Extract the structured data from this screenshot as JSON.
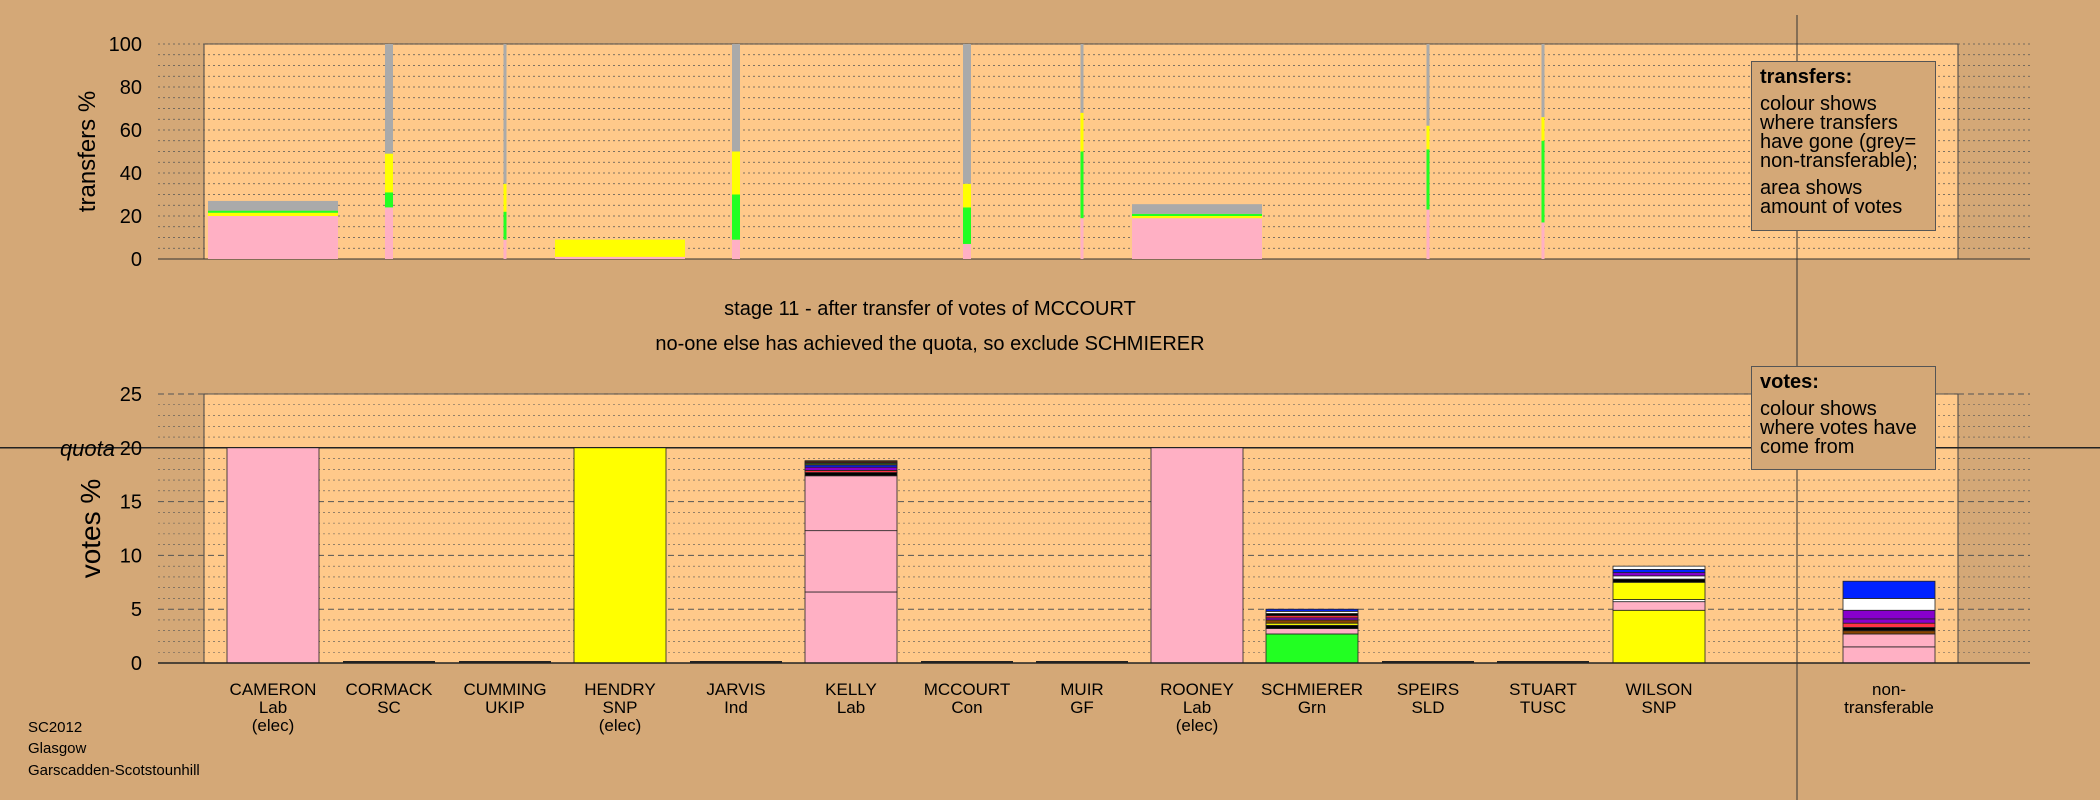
{
  "stage_caption": "stage 11 - after transfer of votes of MCCOURT",
  "status_caption": "no-one else has achieved the quota, so exclude SCHMIERER",
  "transfers_legend": {
    "title": "transfers:",
    "line1": "colour shows where transfers have gone (grey= non-transferable);",
    "line2": "area shows amount of votes"
  },
  "votes_legend": {
    "title": "votes:",
    "line1": "colour shows where votes have come from"
  },
  "footer": {
    "line1": "SC2012",
    "line2": "Glasgow",
    "line3": "Garscadden-Scotstounhill"
  },
  "candidates": [
    {
      "name": "CAMERON",
      "party": "Lab",
      "status": "(elec)"
    },
    {
      "name": "CORMACK",
      "party": "SC",
      "status": ""
    },
    {
      "name": "CUMMING",
      "party": "UKIP",
      "status": ""
    },
    {
      "name": "HENDRY",
      "party": "SNP",
      "status": "(elec)"
    },
    {
      "name": "JARVIS",
      "party": "Ind",
      "status": ""
    },
    {
      "name": "KELLY",
      "party": "Lab",
      "status": ""
    },
    {
      "name": "MCCOURT",
      "party": "Con",
      "status": ""
    },
    {
      "name": "MUIR",
      "party": "GF",
      "status": ""
    },
    {
      "name": "ROONEY",
      "party": "Lab",
      "status": "(elec)"
    },
    {
      "name": "SCHMIERER",
      "party": "Grn",
      "status": ""
    },
    {
      "name": "SPEIRS",
      "party": "SLD",
      "status": ""
    },
    {
      "name": "STUART",
      "party": "TUSC",
      "status": ""
    },
    {
      "name": "WILSON",
      "party": "SNP",
      "status": ""
    }
  ],
  "nontransferable_label": {
    "line1": "non-",
    "line2": "transferable"
  },
  "colors": {
    "background": "#d4a877",
    "plot": "#ffc98a",
    "Lab": "#ffb0c4",
    "SNP": "#ffff00",
    "Grn": "#22ff22",
    "Con": "#0022ff",
    "SLD": "#ffffff",
    "UKIP": "#8800cc",
    "Ind": "#000000",
    "SC": "#ff3344",
    "GF": "#884400",
    "TUSC": "#cc0000",
    "nontransferable": "#aaaaaa"
  },
  "chart_data": [
    {
      "type": "bar",
      "title": "",
      "ylabel": "transfers %",
      "ylim": [
        0,
        100
      ],
      "yticks": [
        0,
        20,
        40,
        60,
        80,
        100
      ],
      "bars": [
        {
          "candidate": "CAMERON",
          "width": "wide",
          "segments": [
            {
              "party": "Lab",
              "value": 20
            },
            {
              "party": "SNP",
              "value": 1.5
            },
            {
              "party": "Grn",
              "value": 1
            },
            {
              "party": "nontransferable",
              "value": 4.5
            }
          ]
        },
        {
          "candidate": "CORMACK",
          "width": "thin",
          "segments": [
            {
              "party": "Lab",
              "value": 24
            },
            {
              "party": "Grn",
              "value": 7
            },
            {
              "party": "SNP",
              "value": 18
            },
            {
              "party": "nontransferable",
              "value": 51
            }
          ]
        },
        {
          "candidate": "CUMMING",
          "width": "hair",
          "segments": [
            {
              "party": "Lab",
              "value": 9
            },
            {
              "party": "Grn",
              "value": 13
            },
            {
              "party": "SNP",
              "value": 13
            },
            {
              "party": "nontransferable",
              "value": 65
            }
          ]
        },
        {
          "candidate": "HENDRY",
          "width": "wide",
          "segments": [
            {
              "party": "Lab",
              "value": 1
            },
            {
              "party": "SNP",
              "value": 8
            }
          ]
        },
        {
          "candidate": "JARVIS",
          "width": "thin",
          "segments": [
            {
              "party": "Lab",
              "value": 9
            },
            {
              "party": "Grn",
              "value": 21
            },
            {
              "party": "SNP",
              "value": 20
            },
            {
              "party": "nontransferable",
              "value": 50
            }
          ]
        },
        {
          "candidate": "MCCOURT",
          "width": "thin",
          "segments": [
            {
              "party": "Lab",
              "value": 7
            },
            {
              "party": "Grn",
              "value": 17
            },
            {
              "party": "SNP",
              "value": 11
            },
            {
              "party": "nontransferable",
              "value": 65
            }
          ]
        },
        {
          "candidate": "MUIR",
          "width": "hair",
          "segments": [
            {
              "party": "Lab",
              "value": 19
            },
            {
              "party": "Grn",
              "value": 31
            },
            {
              "party": "SNP",
              "value": 18
            },
            {
              "party": "nontransferable",
              "value": 32
            }
          ]
        },
        {
          "candidate": "ROONEY",
          "width": "wide",
          "segments": [
            {
              "party": "Lab",
              "value": 19
            },
            {
              "party": "SNP",
              "value": 1
            },
            {
              "party": "Grn",
              "value": 1
            },
            {
              "party": "nontransferable",
              "value": 4.5
            }
          ]
        },
        {
          "candidate": "SPEIRS",
          "width": "hair",
          "segments": [
            {
              "party": "Lab",
              "value": 23
            },
            {
              "party": "Grn",
              "value": 28
            },
            {
              "party": "SNP",
              "value": 11
            },
            {
              "party": "nontransferable",
              "value": 38
            }
          ]
        },
        {
          "candidate": "STUART",
          "width": "hair",
          "segments": [
            {
              "party": "Lab",
              "value": 17
            },
            {
              "party": "Grn",
              "value": 38
            },
            {
              "party": "SNP",
              "value": 11
            },
            {
              "party": "nontransferable",
              "value": 34
            }
          ]
        }
      ]
    },
    {
      "type": "bar",
      "title": "",
      "ylabel": "votes %",
      "ylim": [
        0,
        25
      ],
      "yticks": [
        0,
        5,
        10,
        15,
        20,
        25
      ],
      "quota": {
        "label": "quota",
        "value": 20
      },
      "bars": [
        {
          "candidate": "CAMERON",
          "segments": [
            {
              "party": "Lab",
              "value": 20
            }
          ]
        },
        {
          "candidate": "CORMACK",
          "segments": []
        },
        {
          "candidate": "CUMMING",
          "segments": []
        },
        {
          "candidate": "HENDRY",
          "segments": [
            {
              "party": "SNP",
              "value": 20
            }
          ]
        },
        {
          "candidate": "JARVIS",
          "segments": []
        },
        {
          "candidate": "KELLY",
          "segments": [
            {
              "party": "Lab",
              "value": 6.6
            },
            {
              "party": "Lab",
              "value": 5.7
            },
            {
              "party": "Lab",
              "value": 5.1
            },
            {
              "party": "Ind",
              "value": 0.3
            },
            {
              "party": "SC",
              "value": 0.2
            },
            {
              "party": "UKIP",
              "value": 0.3
            },
            {
              "party": "Con",
              "value": 0.2
            },
            {
              "party": "SNP",
              "value": 0.1
            },
            {
              "party": "Grn",
              "value": 0.1
            },
            {
              "party": "TUSC",
              "value": 0.1
            },
            {
              "party": "GF",
              "value": 0.1
            }
          ]
        },
        {
          "candidate": "MCCOURT",
          "segments": []
        },
        {
          "candidate": "MUIR",
          "segments": []
        },
        {
          "candidate": "ROONEY",
          "segments": [
            {
              "party": "Lab",
              "value": 20
            }
          ]
        },
        {
          "candidate": "SCHMIERER",
          "segments": [
            {
              "party": "Grn",
              "value": 2.7
            },
            {
              "party": "Lab",
              "value": 0.5
            },
            {
              "party": "Ind",
              "value": 0.3
            },
            {
              "party": "SNP",
              "value": 0.2
            },
            {
              "party": "GF",
              "value": 0.3
            },
            {
              "party": "UKIP",
              "value": 0.2
            },
            {
              "party": "SC",
              "value": 0.2
            },
            {
              "party": "Ind",
              "value": 0.2
            },
            {
              "party": "SLD",
              "value": 0.2
            },
            {
              "party": "Con",
              "value": 0.2
            }
          ]
        },
        {
          "candidate": "SPEIRS",
          "segments": []
        },
        {
          "candidate": "STUART",
          "segments": []
        },
        {
          "candidate": "WILSON",
          "segments": [
            {
              "party": "SNP",
              "value": 4.9
            },
            {
              "party": "Lab",
              "value": 0.8
            },
            {
              "party": "SLD",
              "value": 0.2
            },
            {
              "party": "SNP",
              "value": 1.6
            },
            {
              "party": "Ind",
              "value": 0.3
            },
            {
              "party": "SLD",
              "value": 0.3
            },
            {
              "party": "UKIP",
              "value": 0.3
            },
            {
              "party": "Con",
              "value": 0.3
            },
            {
              "party": "SLD",
              "value": 0.3
            }
          ]
        },
        {
          "candidate": "non-transferable",
          "segments": [
            {
              "party": "Lab",
              "value": 1.5
            },
            {
              "party": "Lab",
              "value": 1.2
            },
            {
              "party": "GF",
              "value": 0.3
            },
            {
              "party": "Ind",
              "value": 0.3
            },
            {
              "party": "SC",
              "value": 0.4
            },
            {
              "party": "UKIP",
              "value": 0.4
            },
            {
              "party": "UKIP",
              "value": 0.8
            },
            {
              "party": "SLD",
              "value": 1.1
            },
            {
              "party": "Con",
              "value": 1.6
            }
          ]
        }
      ]
    }
  ]
}
